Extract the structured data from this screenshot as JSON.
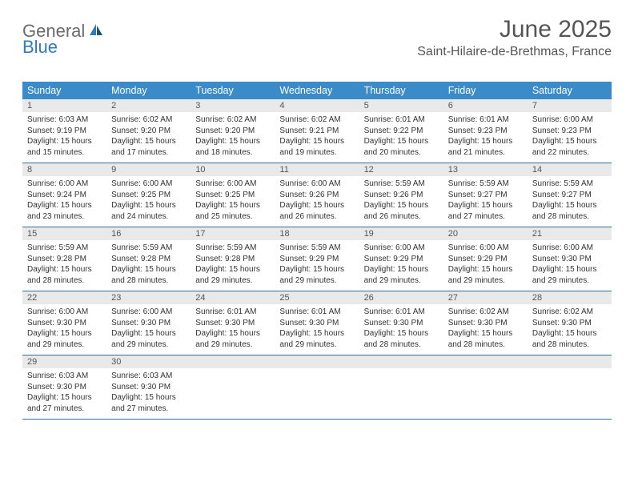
{
  "logo": {
    "part1": "General",
    "part2": "Blue"
  },
  "title": "June 2025",
  "location": "Saint-Hilaire-de-Brethmas, France",
  "colors": {
    "header_bg": "#3b8bc9",
    "header_text": "#ffffff",
    "daynum_bg": "#e9e9e9",
    "week_border": "#2f6fa8",
    "body_text": "#333333",
    "logo_gray": "#6b6b6b",
    "logo_blue": "#2f7bbf",
    "title_color": "#555555"
  },
  "weekdays": [
    "Sunday",
    "Monday",
    "Tuesday",
    "Wednesday",
    "Thursday",
    "Friday",
    "Saturday"
  ],
  "weeks": [
    {
      "days": [
        {
          "n": "1",
          "sr": "Sunrise: 6:03 AM",
          "ss": "Sunset: 9:19 PM",
          "d1": "Daylight: 15 hours",
          "d2": "and 15 minutes."
        },
        {
          "n": "2",
          "sr": "Sunrise: 6:02 AM",
          "ss": "Sunset: 9:20 PM",
          "d1": "Daylight: 15 hours",
          "d2": "and 17 minutes."
        },
        {
          "n": "3",
          "sr": "Sunrise: 6:02 AM",
          "ss": "Sunset: 9:20 PM",
          "d1": "Daylight: 15 hours",
          "d2": "and 18 minutes."
        },
        {
          "n": "4",
          "sr": "Sunrise: 6:02 AM",
          "ss": "Sunset: 9:21 PM",
          "d1": "Daylight: 15 hours",
          "d2": "and 19 minutes."
        },
        {
          "n": "5",
          "sr": "Sunrise: 6:01 AM",
          "ss": "Sunset: 9:22 PM",
          "d1": "Daylight: 15 hours",
          "d2": "and 20 minutes."
        },
        {
          "n": "6",
          "sr": "Sunrise: 6:01 AM",
          "ss": "Sunset: 9:23 PM",
          "d1": "Daylight: 15 hours",
          "d2": "and 21 minutes."
        },
        {
          "n": "7",
          "sr": "Sunrise: 6:00 AM",
          "ss": "Sunset: 9:23 PM",
          "d1": "Daylight: 15 hours",
          "d2": "and 22 minutes."
        }
      ]
    },
    {
      "days": [
        {
          "n": "8",
          "sr": "Sunrise: 6:00 AM",
          "ss": "Sunset: 9:24 PM",
          "d1": "Daylight: 15 hours",
          "d2": "and 23 minutes."
        },
        {
          "n": "9",
          "sr": "Sunrise: 6:00 AM",
          "ss": "Sunset: 9:25 PM",
          "d1": "Daylight: 15 hours",
          "d2": "and 24 minutes."
        },
        {
          "n": "10",
          "sr": "Sunrise: 6:00 AM",
          "ss": "Sunset: 9:25 PM",
          "d1": "Daylight: 15 hours",
          "d2": "and 25 minutes."
        },
        {
          "n": "11",
          "sr": "Sunrise: 6:00 AM",
          "ss": "Sunset: 9:26 PM",
          "d1": "Daylight: 15 hours",
          "d2": "and 26 minutes."
        },
        {
          "n": "12",
          "sr": "Sunrise: 5:59 AM",
          "ss": "Sunset: 9:26 PM",
          "d1": "Daylight: 15 hours",
          "d2": "and 26 minutes."
        },
        {
          "n": "13",
          "sr": "Sunrise: 5:59 AM",
          "ss": "Sunset: 9:27 PM",
          "d1": "Daylight: 15 hours",
          "d2": "and 27 minutes."
        },
        {
          "n": "14",
          "sr": "Sunrise: 5:59 AM",
          "ss": "Sunset: 9:27 PM",
          "d1": "Daylight: 15 hours",
          "d2": "and 28 minutes."
        }
      ]
    },
    {
      "days": [
        {
          "n": "15",
          "sr": "Sunrise: 5:59 AM",
          "ss": "Sunset: 9:28 PM",
          "d1": "Daylight: 15 hours",
          "d2": "and 28 minutes."
        },
        {
          "n": "16",
          "sr": "Sunrise: 5:59 AM",
          "ss": "Sunset: 9:28 PM",
          "d1": "Daylight: 15 hours",
          "d2": "and 28 minutes."
        },
        {
          "n": "17",
          "sr": "Sunrise: 5:59 AM",
          "ss": "Sunset: 9:28 PM",
          "d1": "Daylight: 15 hours",
          "d2": "and 29 minutes."
        },
        {
          "n": "18",
          "sr": "Sunrise: 5:59 AM",
          "ss": "Sunset: 9:29 PM",
          "d1": "Daylight: 15 hours",
          "d2": "and 29 minutes."
        },
        {
          "n": "19",
          "sr": "Sunrise: 6:00 AM",
          "ss": "Sunset: 9:29 PM",
          "d1": "Daylight: 15 hours",
          "d2": "and 29 minutes."
        },
        {
          "n": "20",
          "sr": "Sunrise: 6:00 AM",
          "ss": "Sunset: 9:29 PM",
          "d1": "Daylight: 15 hours",
          "d2": "and 29 minutes."
        },
        {
          "n": "21",
          "sr": "Sunrise: 6:00 AM",
          "ss": "Sunset: 9:30 PM",
          "d1": "Daylight: 15 hours",
          "d2": "and 29 minutes."
        }
      ]
    },
    {
      "days": [
        {
          "n": "22",
          "sr": "Sunrise: 6:00 AM",
          "ss": "Sunset: 9:30 PM",
          "d1": "Daylight: 15 hours",
          "d2": "and 29 minutes."
        },
        {
          "n": "23",
          "sr": "Sunrise: 6:00 AM",
          "ss": "Sunset: 9:30 PM",
          "d1": "Daylight: 15 hours",
          "d2": "and 29 minutes."
        },
        {
          "n": "24",
          "sr": "Sunrise: 6:01 AM",
          "ss": "Sunset: 9:30 PM",
          "d1": "Daylight: 15 hours",
          "d2": "and 29 minutes."
        },
        {
          "n": "25",
          "sr": "Sunrise: 6:01 AM",
          "ss": "Sunset: 9:30 PM",
          "d1": "Daylight: 15 hours",
          "d2": "and 29 minutes."
        },
        {
          "n": "26",
          "sr": "Sunrise: 6:01 AM",
          "ss": "Sunset: 9:30 PM",
          "d1": "Daylight: 15 hours",
          "d2": "and 28 minutes."
        },
        {
          "n": "27",
          "sr": "Sunrise: 6:02 AM",
          "ss": "Sunset: 9:30 PM",
          "d1": "Daylight: 15 hours",
          "d2": "and 28 minutes."
        },
        {
          "n": "28",
          "sr": "Sunrise: 6:02 AM",
          "ss": "Sunset: 9:30 PM",
          "d1": "Daylight: 15 hours",
          "d2": "and 28 minutes."
        }
      ]
    },
    {
      "days": [
        {
          "n": "29",
          "sr": "Sunrise: 6:03 AM",
          "ss": "Sunset: 9:30 PM",
          "d1": "Daylight: 15 hours",
          "d2": "and 27 minutes."
        },
        {
          "n": "30",
          "sr": "Sunrise: 6:03 AM",
          "ss": "Sunset: 9:30 PM",
          "d1": "Daylight: 15 hours",
          "d2": "and 27 minutes."
        },
        {
          "n": "",
          "sr": "",
          "ss": "",
          "d1": "",
          "d2": ""
        },
        {
          "n": "",
          "sr": "",
          "ss": "",
          "d1": "",
          "d2": ""
        },
        {
          "n": "",
          "sr": "",
          "ss": "",
          "d1": "",
          "d2": ""
        },
        {
          "n": "",
          "sr": "",
          "ss": "",
          "d1": "",
          "d2": ""
        },
        {
          "n": "",
          "sr": "",
          "ss": "",
          "d1": "",
          "d2": ""
        }
      ]
    }
  ]
}
